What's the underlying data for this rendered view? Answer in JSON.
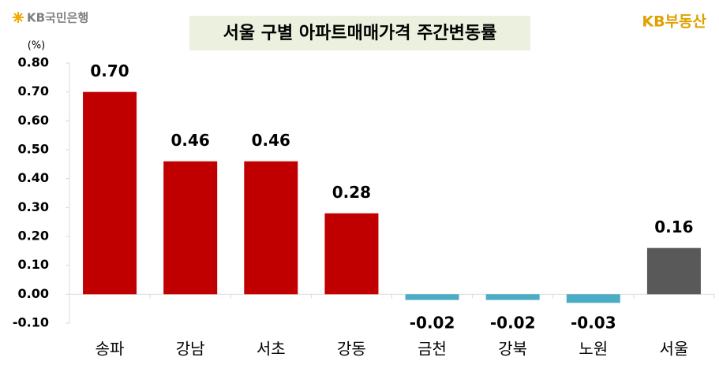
{
  "logos": {
    "left": "KB국민은행",
    "right": "KB부동산"
  },
  "chart_data": {
    "type": "bar",
    "title": "서울 구별 아파트매매가격 주간변동률",
    "y_unit": "(%)",
    "categories": [
      "송파",
      "강남",
      "서초",
      "강동",
      "금천",
      "강북",
      "노원",
      "서울"
    ],
    "values": [
      0.7,
      0.46,
      0.46,
      0.28,
      -0.02,
      -0.02,
      -0.03,
      0.16
    ],
    "value_labels": [
      "0.70",
      "0.46",
      "0.46",
      "0.28",
      "-0.02",
      "-0.02",
      "-0.03",
      "0.16"
    ],
    "colors": [
      "#c00000",
      "#c00000",
      "#c00000",
      "#c00000",
      "#4bacc6",
      "#4bacc6",
      "#4bacc6",
      "#595959"
    ],
    "ylim": [
      -0.1,
      0.8
    ],
    "yticks": [
      {
        "value": -0.1,
        "label": "-0.10"
      },
      {
        "value": 0,
        "label": "0.00"
      },
      {
        "value": 0.1,
        "label": "0.10"
      },
      {
        "value": 0.2,
        "label": "0.20"
      },
      {
        "value": 0.3,
        "label": "0.30"
      },
      {
        "value": 0.4,
        "label": "0.40"
      },
      {
        "value": 0.5,
        "label": "0.50"
      },
      {
        "value": 0.6,
        "label": "0.60"
      },
      {
        "value": 0.7,
        "label": "0.70"
      },
      {
        "value": 0.8,
        "label": "0.80"
      }
    ],
    "negative_tick_color": "#ff0000",
    "grid": false
  }
}
